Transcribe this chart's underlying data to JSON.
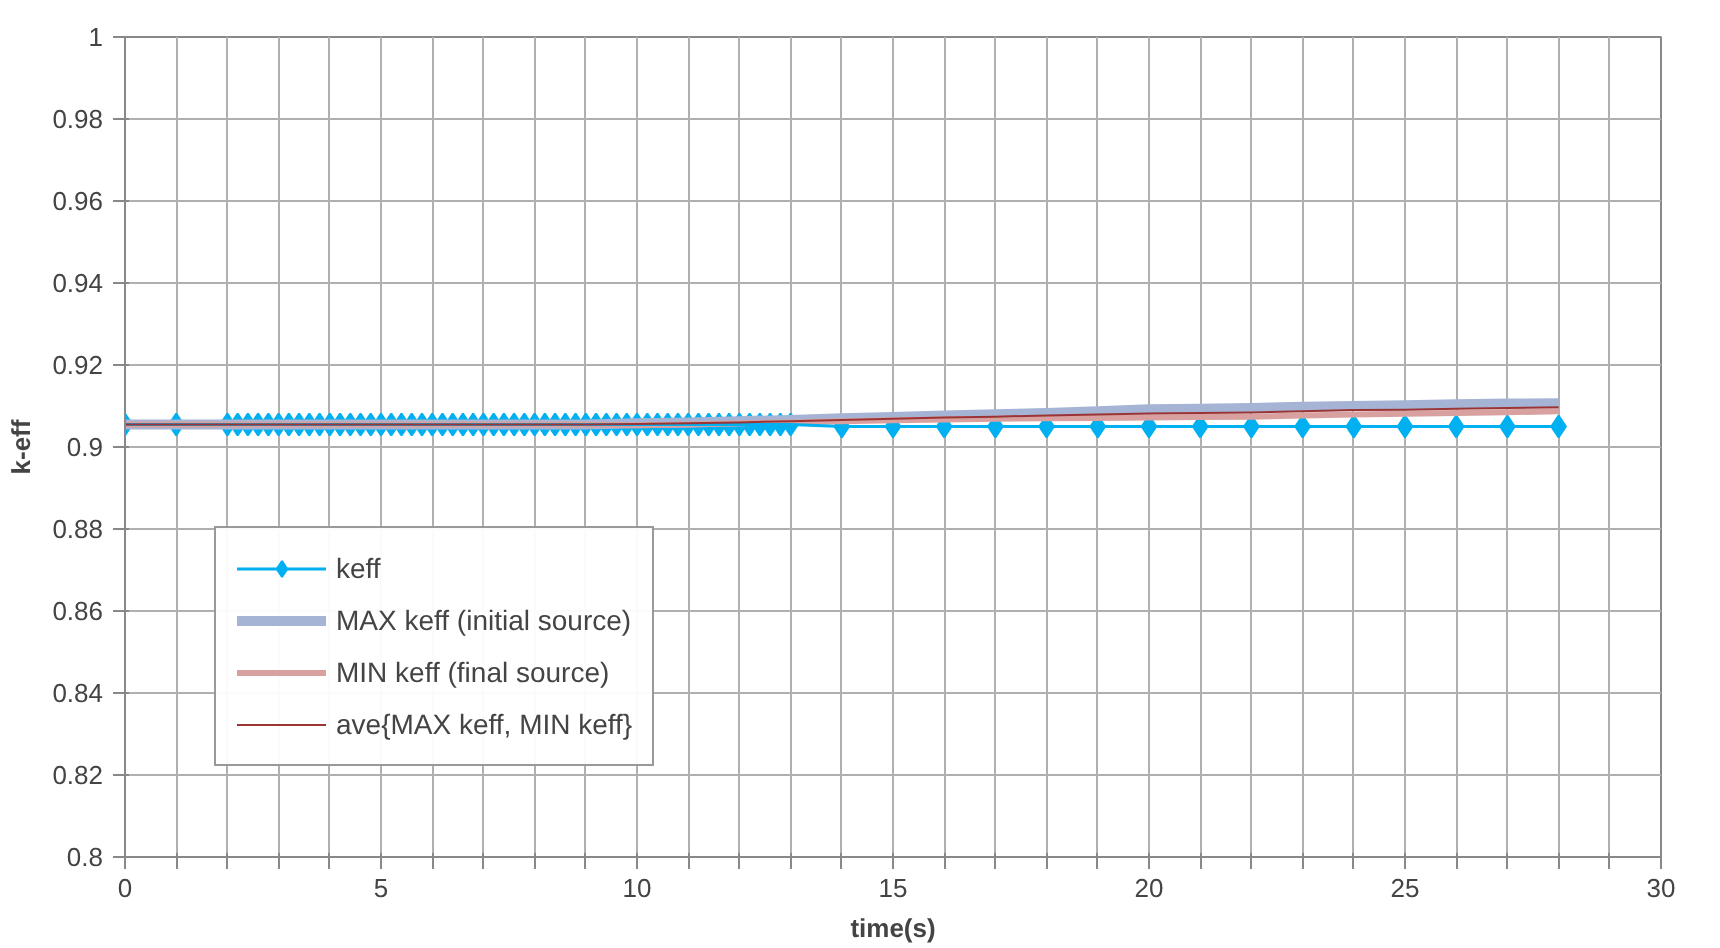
{
  "chart_data": {
    "type": "line",
    "xlabel": "time(s)",
    "ylabel": "k-eff",
    "xlim": [
      0,
      30
    ],
    "ylim": [
      0.8,
      1
    ],
    "xticks": [
      0,
      {
        "value": 1,
        "label": null
      },
      {
        "value": 2,
        "label": null
      },
      {
        "value": 3,
        "label": null
      },
      {
        "value": 4,
        "label": null
      },
      5,
      {
        "value": 6,
        "label": null
      },
      {
        "value": 7,
        "label": null
      },
      {
        "value": 8,
        "label": null
      },
      {
        "value": 9,
        "label": null
      },
      10,
      {
        "value": 11,
        "label": null
      },
      {
        "value": 12,
        "label": null
      },
      {
        "value": 13,
        "label": null
      },
      {
        "value": 14,
        "label": null
      },
      15,
      {
        "value": 16,
        "label": null
      },
      {
        "value": 17,
        "label": null
      },
      {
        "value": 18,
        "label": null
      },
      {
        "value": 19,
        "label": null
      },
      20,
      {
        "value": 21,
        "label": null
      },
      {
        "value": 22,
        "label": null
      },
      {
        "value": 23,
        "label": null
      },
      {
        "value": 24,
        "label": null
      },
      25,
      {
        "value": 26,
        "label": null
      },
      {
        "value": 27,
        "label": null
      },
      {
        "value": 28,
        "label": null
      },
      {
        "value": 29,
        "label": null
      },
      30
    ],
    "yticks": [
      0.8,
      0.82,
      0.84,
      0.86,
      0.88,
      0.9,
      0.92,
      0.94,
      0.96,
      0.98,
      1
    ],
    "grid": true,
    "legend": "bottom left",
    "line_style": "solid",
    "series": [
      {
        "name": "keff",
        "color": "#00b0f0",
        "marker": "diamond",
        "x": [
          0,
          1,
          2,
          2.2,
          2.4,
          2.6,
          2.8,
          3,
          3.2,
          3.4,
          3.6,
          3.8,
          4,
          4.2,
          4.4,
          4.6,
          4.8,
          5,
          5.2,
          5.4,
          5.6,
          5.8,
          6,
          6.2,
          6.4,
          6.6,
          6.8,
          7,
          7.2,
          7.4,
          7.6,
          7.8,
          8,
          8.2,
          8.4,
          8.6,
          8.8,
          9,
          9.2,
          9.4,
          9.6,
          9.8,
          10,
          10.2,
          10.4,
          10.6,
          10.8,
          11,
          11.2,
          11.4,
          11.6,
          11.8,
          12,
          12.2,
          12.4,
          12.6,
          12.8,
          13,
          14,
          15,
          16,
          17,
          18,
          19,
          20,
          21,
          22,
          23,
          24,
          25,
          26,
          27,
          28
        ],
        "values": [
          0.9055,
          0.9055,
          0.9055,
          0.9055,
          0.9055,
          0.9055,
          0.9055,
          0.9055,
          0.9055,
          0.9055,
          0.9055,
          0.9055,
          0.9055,
          0.9055,
          0.9055,
          0.9055,
          0.9055,
          0.9055,
          0.9055,
          0.9055,
          0.9055,
          0.9055,
          0.9055,
          0.9055,
          0.9055,
          0.9055,
          0.9055,
          0.9055,
          0.9055,
          0.9055,
          0.9055,
          0.9055,
          0.9055,
          0.9055,
          0.9055,
          0.9055,
          0.9055,
          0.9055,
          0.9055,
          0.9055,
          0.9055,
          0.9055,
          0.9055,
          0.9055,
          0.9055,
          0.9055,
          0.9055,
          0.9055,
          0.9055,
          0.9055,
          0.9055,
          0.9055,
          0.9055,
          0.9055,
          0.9055,
          0.9055,
          0.9055,
          0.9055,
          0.905,
          0.905,
          0.905,
          0.905,
          0.905,
          0.905,
          0.905,
          0.905,
          0.905,
          0.905,
          0.905,
          0.905,
          0.905,
          0.905,
          0.905
        ]
      },
      {
        "name": "MAX keff (initial source)",
        "color": "#a5b4d4",
        "marker": "none",
        "x": [
          0,
          1,
          2,
          3,
          4,
          5,
          6,
          7,
          8,
          9,
          10,
          11,
          12,
          13,
          14,
          15,
          16,
          17,
          18,
          19,
          20,
          21,
          22,
          23,
          24,
          25,
          26,
          27,
          28
        ],
        "values": [
          0.9055,
          0.9055,
          0.9055,
          0.9055,
          0.9055,
          0.9055,
          0.9055,
          0.9055,
          0.9055,
          0.9055,
          0.9058,
          0.906,
          0.9063,
          0.9066,
          0.907,
          0.9073,
          0.9077,
          0.908,
          0.9083,
          0.9087,
          0.9092,
          0.9093,
          0.9095,
          0.9098,
          0.91,
          0.9102,
          0.9104,
          0.9106,
          0.9107
        ]
      },
      {
        "name": "MIN keff (final source)",
        "color": "#d9a0a0",
        "marker": "none",
        "x": [
          0,
          1,
          2,
          3,
          4,
          5,
          6,
          7,
          8,
          9,
          10,
          11,
          12,
          13,
          14,
          15,
          16,
          17,
          18,
          19,
          20,
          21,
          22,
          23,
          24,
          25,
          26,
          27,
          28
        ],
        "values": [
          0.9055,
          0.9055,
          0.9055,
          0.9055,
          0.9055,
          0.9055,
          0.9055,
          0.9055,
          0.9055,
          0.9055,
          0.9053,
          0.9055,
          0.9058,
          0.906,
          0.9063,
          0.9065,
          0.9067,
          0.9069,
          0.907,
          0.9071,
          0.9072,
          0.9073,
          0.9074,
          0.9077,
          0.9079,
          0.9081,
          0.9083,
          0.9085,
          0.9087
        ]
      },
      {
        "name": "ave{MAX keff, MIN keff}",
        "color": "#9b3535",
        "marker": "none",
        "x": [
          0,
          1,
          2,
          3,
          4,
          5,
          6,
          7,
          8,
          9,
          10,
          11,
          12,
          13,
          14,
          15,
          16,
          17,
          18,
          19,
          20,
          21,
          22,
          23,
          24,
          25,
          26,
          27,
          28
        ],
        "values": [
          0.9055,
          0.9055,
          0.9055,
          0.9055,
          0.9055,
          0.9055,
          0.9055,
          0.9055,
          0.9055,
          0.9055,
          0.9056,
          0.9058,
          0.906,
          0.9063,
          0.9066,
          0.9069,
          0.9072,
          0.9074,
          0.9077,
          0.9079,
          0.9082,
          0.9083,
          0.9084,
          0.9087,
          0.909,
          0.9091,
          0.9093,
          0.9095,
          0.9097
        ]
      }
    ]
  }
}
